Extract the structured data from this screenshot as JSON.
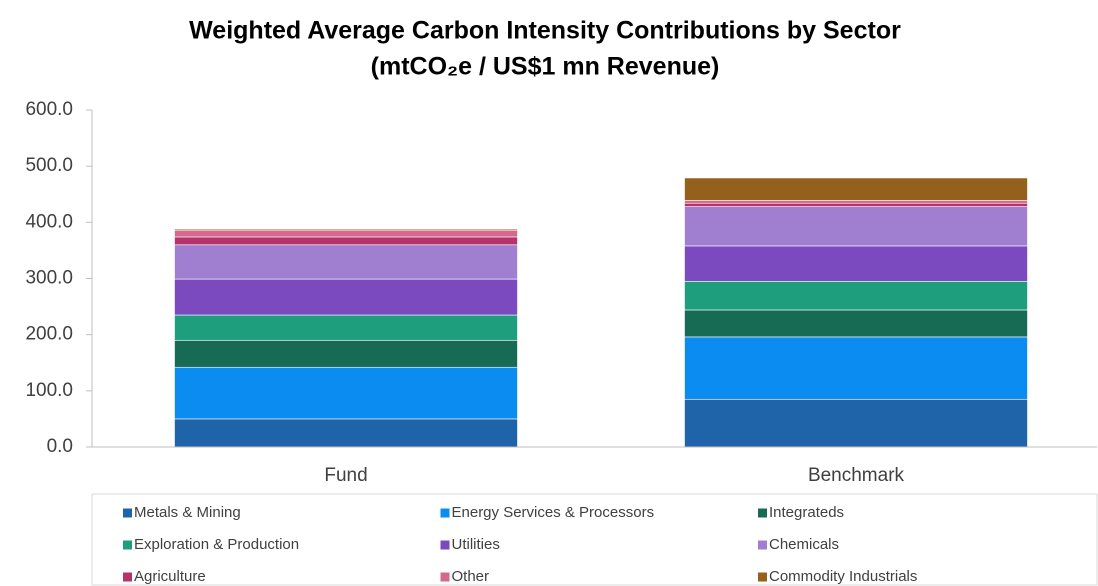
{
  "chart_data": {
    "type": "stacked_bar",
    "title": "Weighted Average Carbon Intensity Contributions by Sector",
    "subtitle": "(mtCO₂e / US$1 mn Revenue)",
    "categories": [
      "Fund",
      "Benchmark"
    ],
    "series": [
      {
        "name": "Metals & Mining",
        "color": "#1f64a8",
        "values": [
          50,
          85
        ]
      },
      {
        "name": "Energy Services & Processors",
        "color": "#0b8cf0",
        "values": [
          92,
          111
        ]
      },
      {
        "name": "Integrateds",
        "color": "#176b55",
        "values": [
          48,
          48
        ]
      },
      {
        "name": "Exploration & Production",
        "color": "#1f9e7e",
        "values": [
          45,
          51
        ]
      },
      {
        "name": "Utilities",
        "color": "#7a4abe",
        "values": [
          64,
          63
        ]
      },
      {
        "name": "Chemicals",
        "color": "#a07fd0",
        "values": [
          61,
          70
        ]
      },
      {
        "name": "Agriculture",
        "color": "#b5336a",
        "values": [
          14,
          6
        ]
      },
      {
        "name": "Other",
        "color": "#d4688f",
        "values": [
          12,
          5
        ]
      },
      {
        "name": "Commodity Industrials",
        "color": "#93611c",
        "values": [
          2,
          40
        ]
      }
    ],
    "ylim": [
      0,
      600
    ],
    "yticks": [
      {
        "value": 0,
        "label": "0.0"
      },
      {
        "value": 100,
        "label": "100.0"
      },
      {
        "value": 200,
        "label": "200.0"
      },
      {
        "value": 300,
        "label": "300.0"
      },
      {
        "value": 400,
        "label": "400.0"
      },
      {
        "value": 500,
        "label": "500.0"
      },
      {
        "value": 600,
        "label": "600.0"
      }
    ],
    "legend": "bottom"
  }
}
